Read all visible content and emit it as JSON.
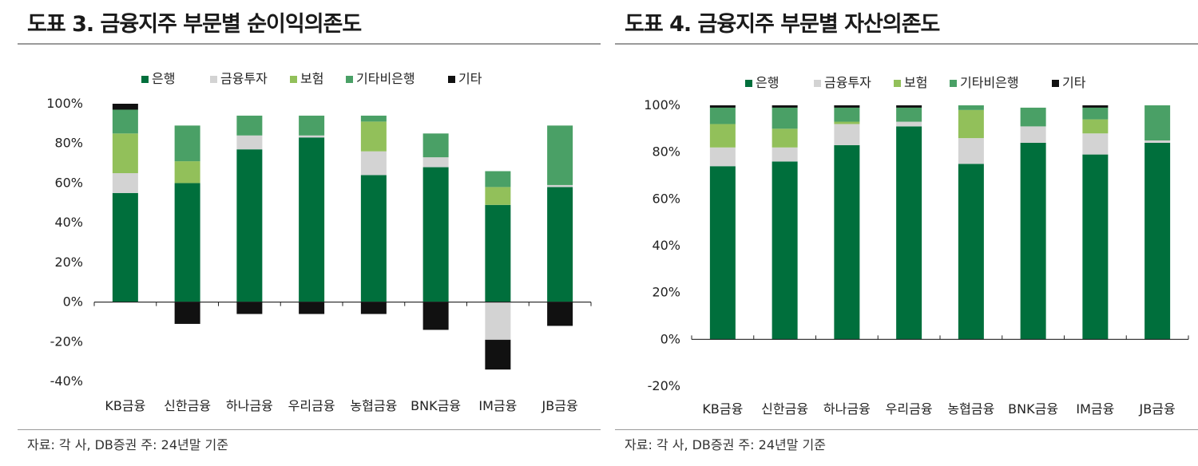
{
  "figures": [
    {
      "title": "도표 3. 금융지주 부문별 순이익의존도",
      "source": "자료: 각 사, DB증권   주: 24년말 기준"
    },
    {
      "title": "도표 4. 금융지주 부문별 자산의존도",
      "source": "자료: 각 사, DB증권   주: 24년말 기준"
    }
  ],
  "chart_data": [
    {
      "type": "bar",
      "stacked": true,
      "categories": [
        "KB금융",
        "신한금융",
        "하나금융",
        "우리금융",
        "농협금융",
        "BNK금융",
        "IM금융",
        "JB금융"
      ],
      "series": [
        {
          "name": "은행",
          "color": "#006f3c",
          "values": [
            55,
            60,
            77,
            83,
            64,
            68,
            49,
            58
          ]
        },
        {
          "name": "금융투자",
          "color": "#d3d3d3",
          "values": [
            10,
            0,
            7,
            1,
            12,
            5,
            -19,
            1
          ]
        },
        {
          "name": "보험",
          "color": "#92c05a",
          "values": [
            20,
            11,
            0,
            0,
            15,
            0,
            9,
            0
          ]
        },
        {
          "name": "기타비은행",
          "color": "#4aa066",
          "values": [
            12,
            18,
            10,
            10,
            3,
            12,
            8,
            30
          ]
        },
        {
          "name": "기타",
          "color": "#111111",
          "values": [
            3,
            -11,
            -6,
            -6,
            -6,
            -14,
            -15,
            -12
          ]
        }
      ],
      "ylim": [
        -40,
        100
      ],
      "yticks": [
        "-40%",
        "-20%",
        "0%",
        "20%",
        "40%",
        "60%",
        "80%",
        "100%"
      ],
      "legend_position": "top",
      "grid": false
    },
    {
      "type": "bar",
      "stacked": true,
      "categories": [
        "KB금융",
        "신한금융",
        "하나금융",
        "우리금융",
        "농협금융",
        "BNK금융",
        "IM금융",
        "JB금융"
      ],
      "series": [
        {
          "name": "은행",
          "color": "#006f3c",
          "values": [
            74,
            76,
            83,
            91,
            75,
            84,
            79,
            84
          ]
        },
        {
          "name": "금융투자",
          "color": "#d3d3d3",
          "values": [
            8,
            6,
            9,
            2,
            11,
            7,
            9,
            1
          ]
        },
        {
          "name": "보험",
          "color": "#92c05a",
          "values": [
            10,
            8,
            1,
            0,
            12,
            0,
            6,
            0
          ]
        },
        {
          "name": "기타비은행",
          "color": "#4aa066",
          "values": [
            7,
            9,
            6,
            6,
            2,
            8,
            5,
            15
          ]
        },
        {
          "name": "기타",
          "color": "#111111",
          "values": [
            1,
            1,
            1,
            1,
            0,
            0,
            1,
            0
          ]
        }
      ],
      "ylim": [
        -20,
        100
      ],
      "yticks": [
        "-20%",
        "0%",
        "20%",
        "40%",
        "60%",
        "80%",
        "100%"
      ],
      "legend_position": "top",
      "grid": false
    }
  ]
}
